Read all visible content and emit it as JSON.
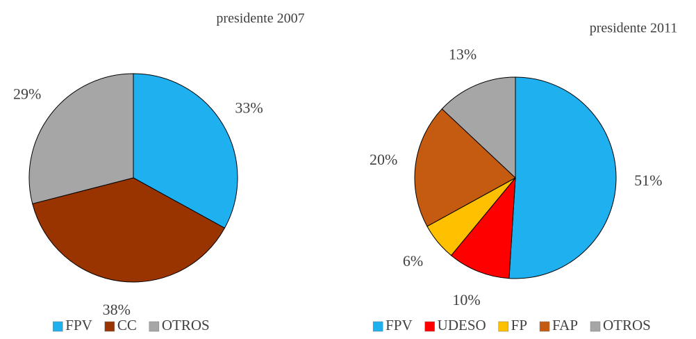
{
  "chart_data": [
    {
      "type": "pie",
      "title": "presidente 2007",
      "categories": [
        "FPV",
        "CC",
        "OTROS"
      ],
      "values": [
        33,
        38,
        29
      ],
      "value_labels": [
        "33%",
        "38%",
        "29%"
      ],
      "colors": [
        "#1eb0ef",
        "#993300",
        "#a6a6a6"
      ],
      "legend": "bottom"
    },
    {
      "type": "pie",
      "title": "presidente 2011",
      "categories": [
        "FPV",
        "UDESO",
        "FP",
        "FAP",
        "OTROS"
      ],
      "values": [
        51,
        10,
        6,
        20,
        13
      ],
      "value_labels": [
        "51%",
        "10%",
        "6%",
        "20%",
        "13%"
      ],
      "colors": [
        "#1eb0ef",
        "#ff0000",
        "#ffc000",
        "#c55a11",
        "#a6a6a6"
      ],
      "legend": "bottom"
    }
  ]
}
